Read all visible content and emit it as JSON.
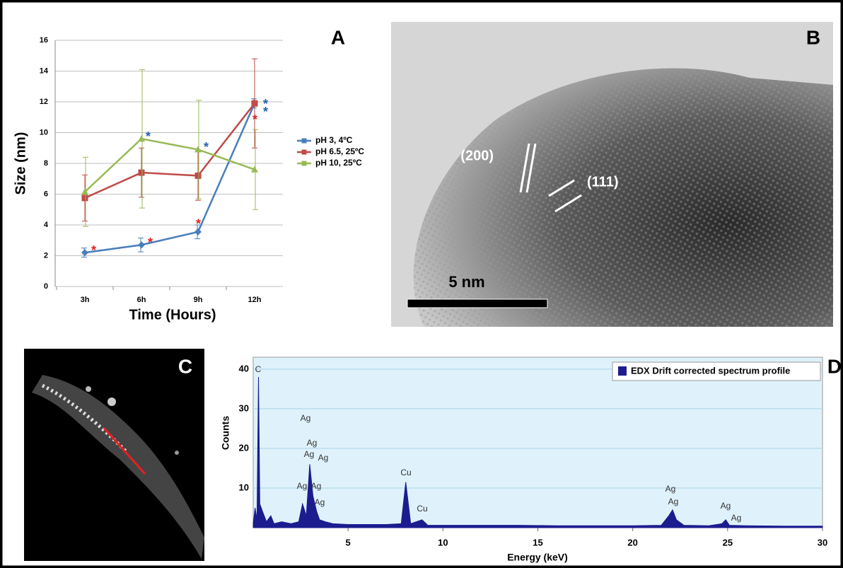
{
  "chart_data": [
    {
      "type": "line",
      "x_label": "Time (Hours)",
      "y_label": "Size (nm)",
      "categories": [
        "3h",
        "6h",
        "9h",
        "12h"
      ],
      "series": [
        {
          "name": "pH 3, 4ºC",
          "color": "#4a7ebb",
          "marker": "diamond",
          "values": [
            2.2,
            2.7,
            3.55,
            11.9
          ],
          "errors": [
            0.3,
            0.45,
            0.45,
            0.3
          ]
        },
        {
          "name": "pH 6.5, 25ºC",
          "color": "#be4b48",
          "marker": "square",
          "values": [
            5.75,
            7.4,
            7.2,
            11.9
          ],
          "errors": [
            1.5,
            1.6,
            1.6,
            2.9
          ]
        },
        {
          "name": "pH 10, 25ºC",
          "color": "#98b954",
          "marker": "triangle",
          "values": [
            6.15,
            9.6,
            8.9,
            7.6
          ],
          "errors": [
            2.25,
            4.5,
            3.2,
            2.6
          ]
        }
      ],
      "ylim": [
        0,
        16
      ],
      "yticks": [
        0,
        2,
        4,
        6,
        8,
        10,
        12,
        14,
        16
      ],
      "grid": true,
      "annotations": [
        {
          "text": "*",
          "color": "#e02020",
          "series": 0,
          "point": 0
        },
        {
          "text": "*",
          "color": "#e02020",
          "series": 0,
          "point": 1
        },
        {
          "text": "*",
          "color": "#e02020",
          "series": 0,
          "point": 2
        },
        {
          "text": "*",
          "color": "#e02020",
          "series": 1,
          "point": 3
        },
        {
          "text": "*",
          "color": "#2a5fa8",
          "series": 2,
          "point": 1
        },
        {
          "text": "*",
          "color": "#2a5fa8",
          "series": 2,
          "point": 2
        },
        {
          "text": "*",
          "color": "#2a5fa8",
          "series": 1,
          "point": 3
        },
        {
          "text": "*",
          "color": "#2a5fa8",
          "series": 1,
          "point": 3
        }
      ]
    },
    {
      "type": "area",
      "x_label": "Energy (keV)",
      "y_label": "Counts",
      "legend": "EDX Drift corrected spectrum profile",
      "color": "#1c1c8f",
      "x": [
        0,
        0.1,
        0.2,
        0.28,
        0.35,
        0.5,
        0.7,
        0.93,
        1.1,
        1.5,
        2.0,
        2.4,
        2.6,
        2.8,
        2.98,
        3.15,
        3.35,
        3.5,
        3.8,
        4.2,
        5,
        6,
        7,
        7.8,
        8.04,
        8.3,
        8.9,
        9.2,
        10,
        12,
        14,
        16,
        18,
        20,
        21.5,
        21.9,
        22.1,
        22.3,
        22.7,
        24,
        24.7,
        24.9,
        25.1,
        26,
        28,
        30
      ],
      "values": [
        1,
        5,
        2,
        38,
        6,
        4,
        1.5,
        3,
        1,
        1.5,
        1,
        1.5,
        6,
        3,
        16,
        8,
        4,
        2,
        1.5,
        1,
        0.8,
        0.8,
        0.8,
        1,
        11.5,
        1,
        2,
        0.6,
        0.6,
        0.6,
        0.6,
        0.5,
        0.5,
        0.5,
        0.6,
        3,
        4.5,
        2,
        0.6,
        0.5,
        1,
        2,
        0.6,
        0.5,
        0.4,
        0.4
      ],
      "xlim": [
        0,
        30
      ],
      "xticks": [
        5,
        10,
        15,
        20,
        25,
        30
      ],
      "ylim": [
        0,
        43
      ],
      "yticks": [
        10,
        20,
        30,
        40
      ],
      "grid": true,
      "peak_labels": [
        "C",
        "Ag",
        "Ag",
        "Ag",
        "Ag",
        "Cu",
        "Ag",
        "Ag",
        "Ag",
        "Cu",
        "Ag",
        "Ag",
        "Ag",
        "Ag"
      ]
    }
  ],
  "panel_labels": [
    "A",
    "B",
    "C",
    "D"
  ],
  "tem_annotations": {
    "plane_1": "(200)",
    "plane_2": "(111)",
    "scale_bar": "5 nm"
  }
}
